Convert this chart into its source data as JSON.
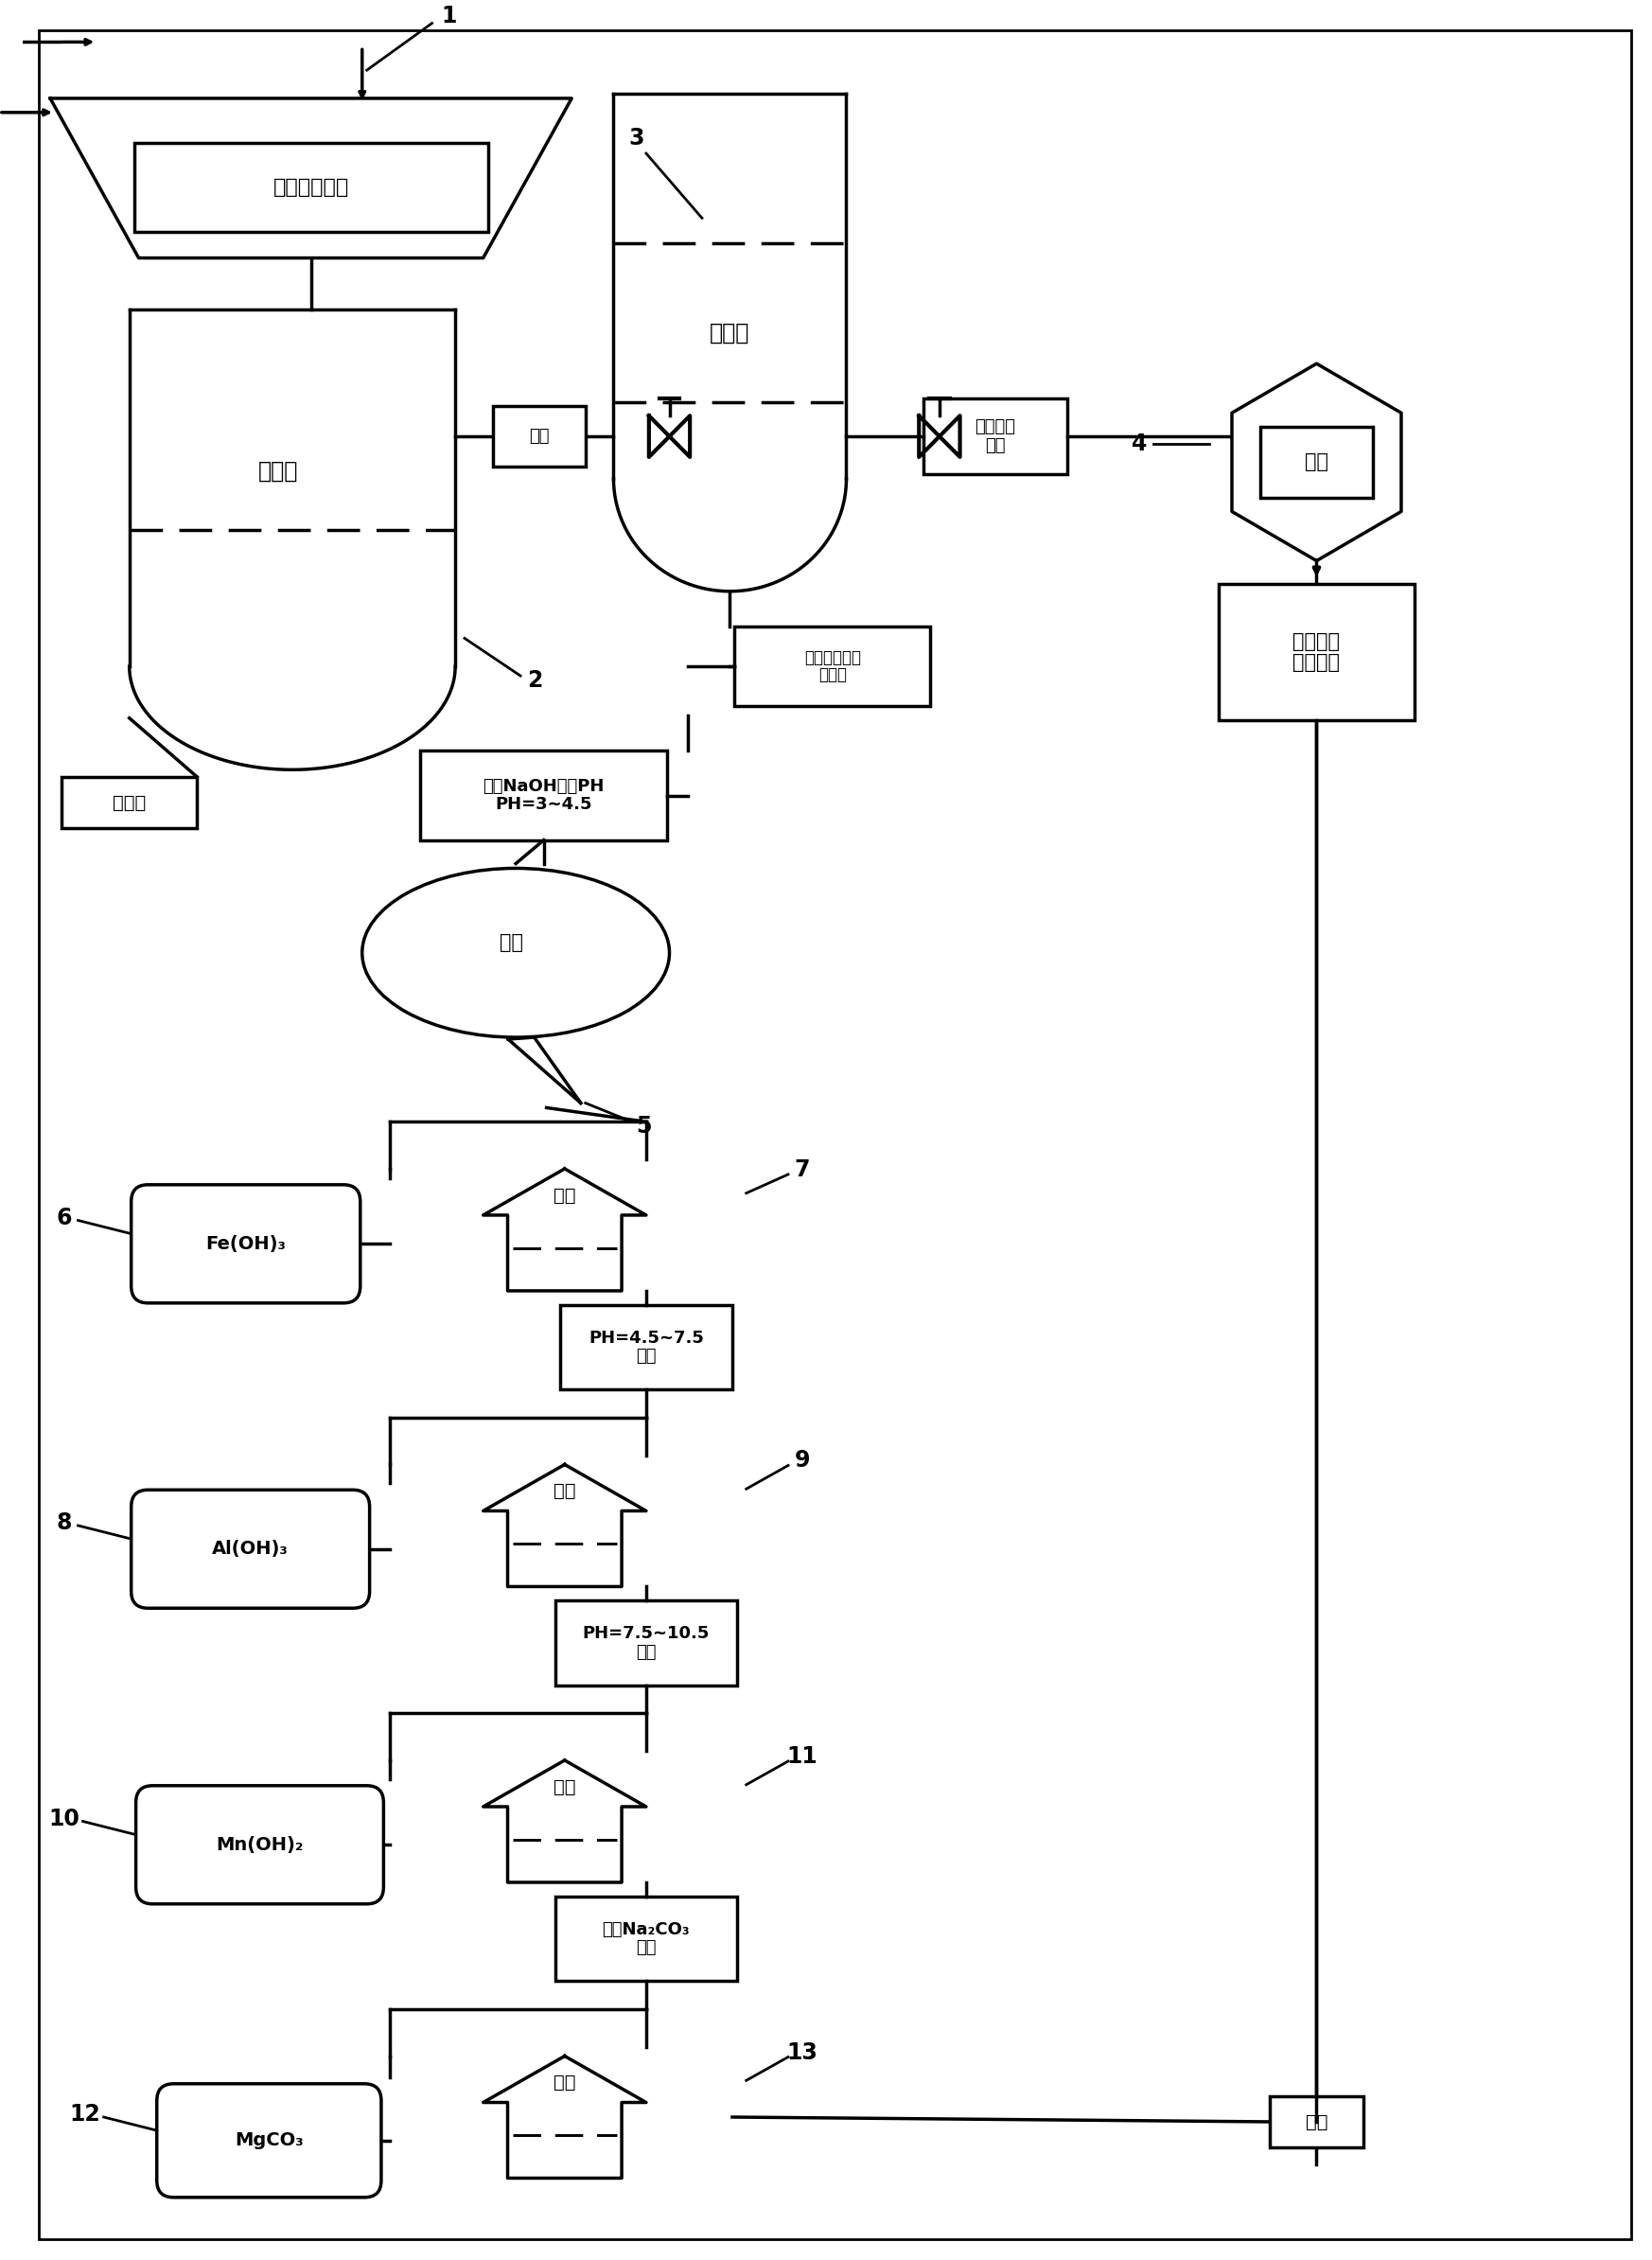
{
  "bg": "#ffffff",
  "lc": "#000000",
  "lw": 2.5,
  "labels": {
    "l1": "锂云母浸出液",
    "l2": "陶瓷膜",
    "l3": "纳滤膜",
    "l4": "锂盐",
    "l5": "过滤",
    "l6": "Fe(OH)₃",
    "l7": "滤液",
    "l8": "Al(OH)₃",
    "l9": "滤液",
    "l10": "Mn(OH)₂",
    "l11": "滤液",
    "l12": "MgCO₃",
    "l13": "滤液",
    "l_trad": "通过传统\n方法沉锂",
    "l_naoh": "通过NaOH调节PH\nPH=3~4.5",
    "l_conc": "二、三价离子\n浓缩液",
    "l_mono": "一价离子\n清液",
    "l_recirc": "固液水",
    "l_filt": "滤液",
    "l_ph1": "PH=4.5~7.5\n过滤",
    "l_ph2": "PH=7.5~10.5\n过滤",
    "l_na2co3": "加入Na₂CO₃\n过滤",
    "l_clear": "清液"
  }
}
